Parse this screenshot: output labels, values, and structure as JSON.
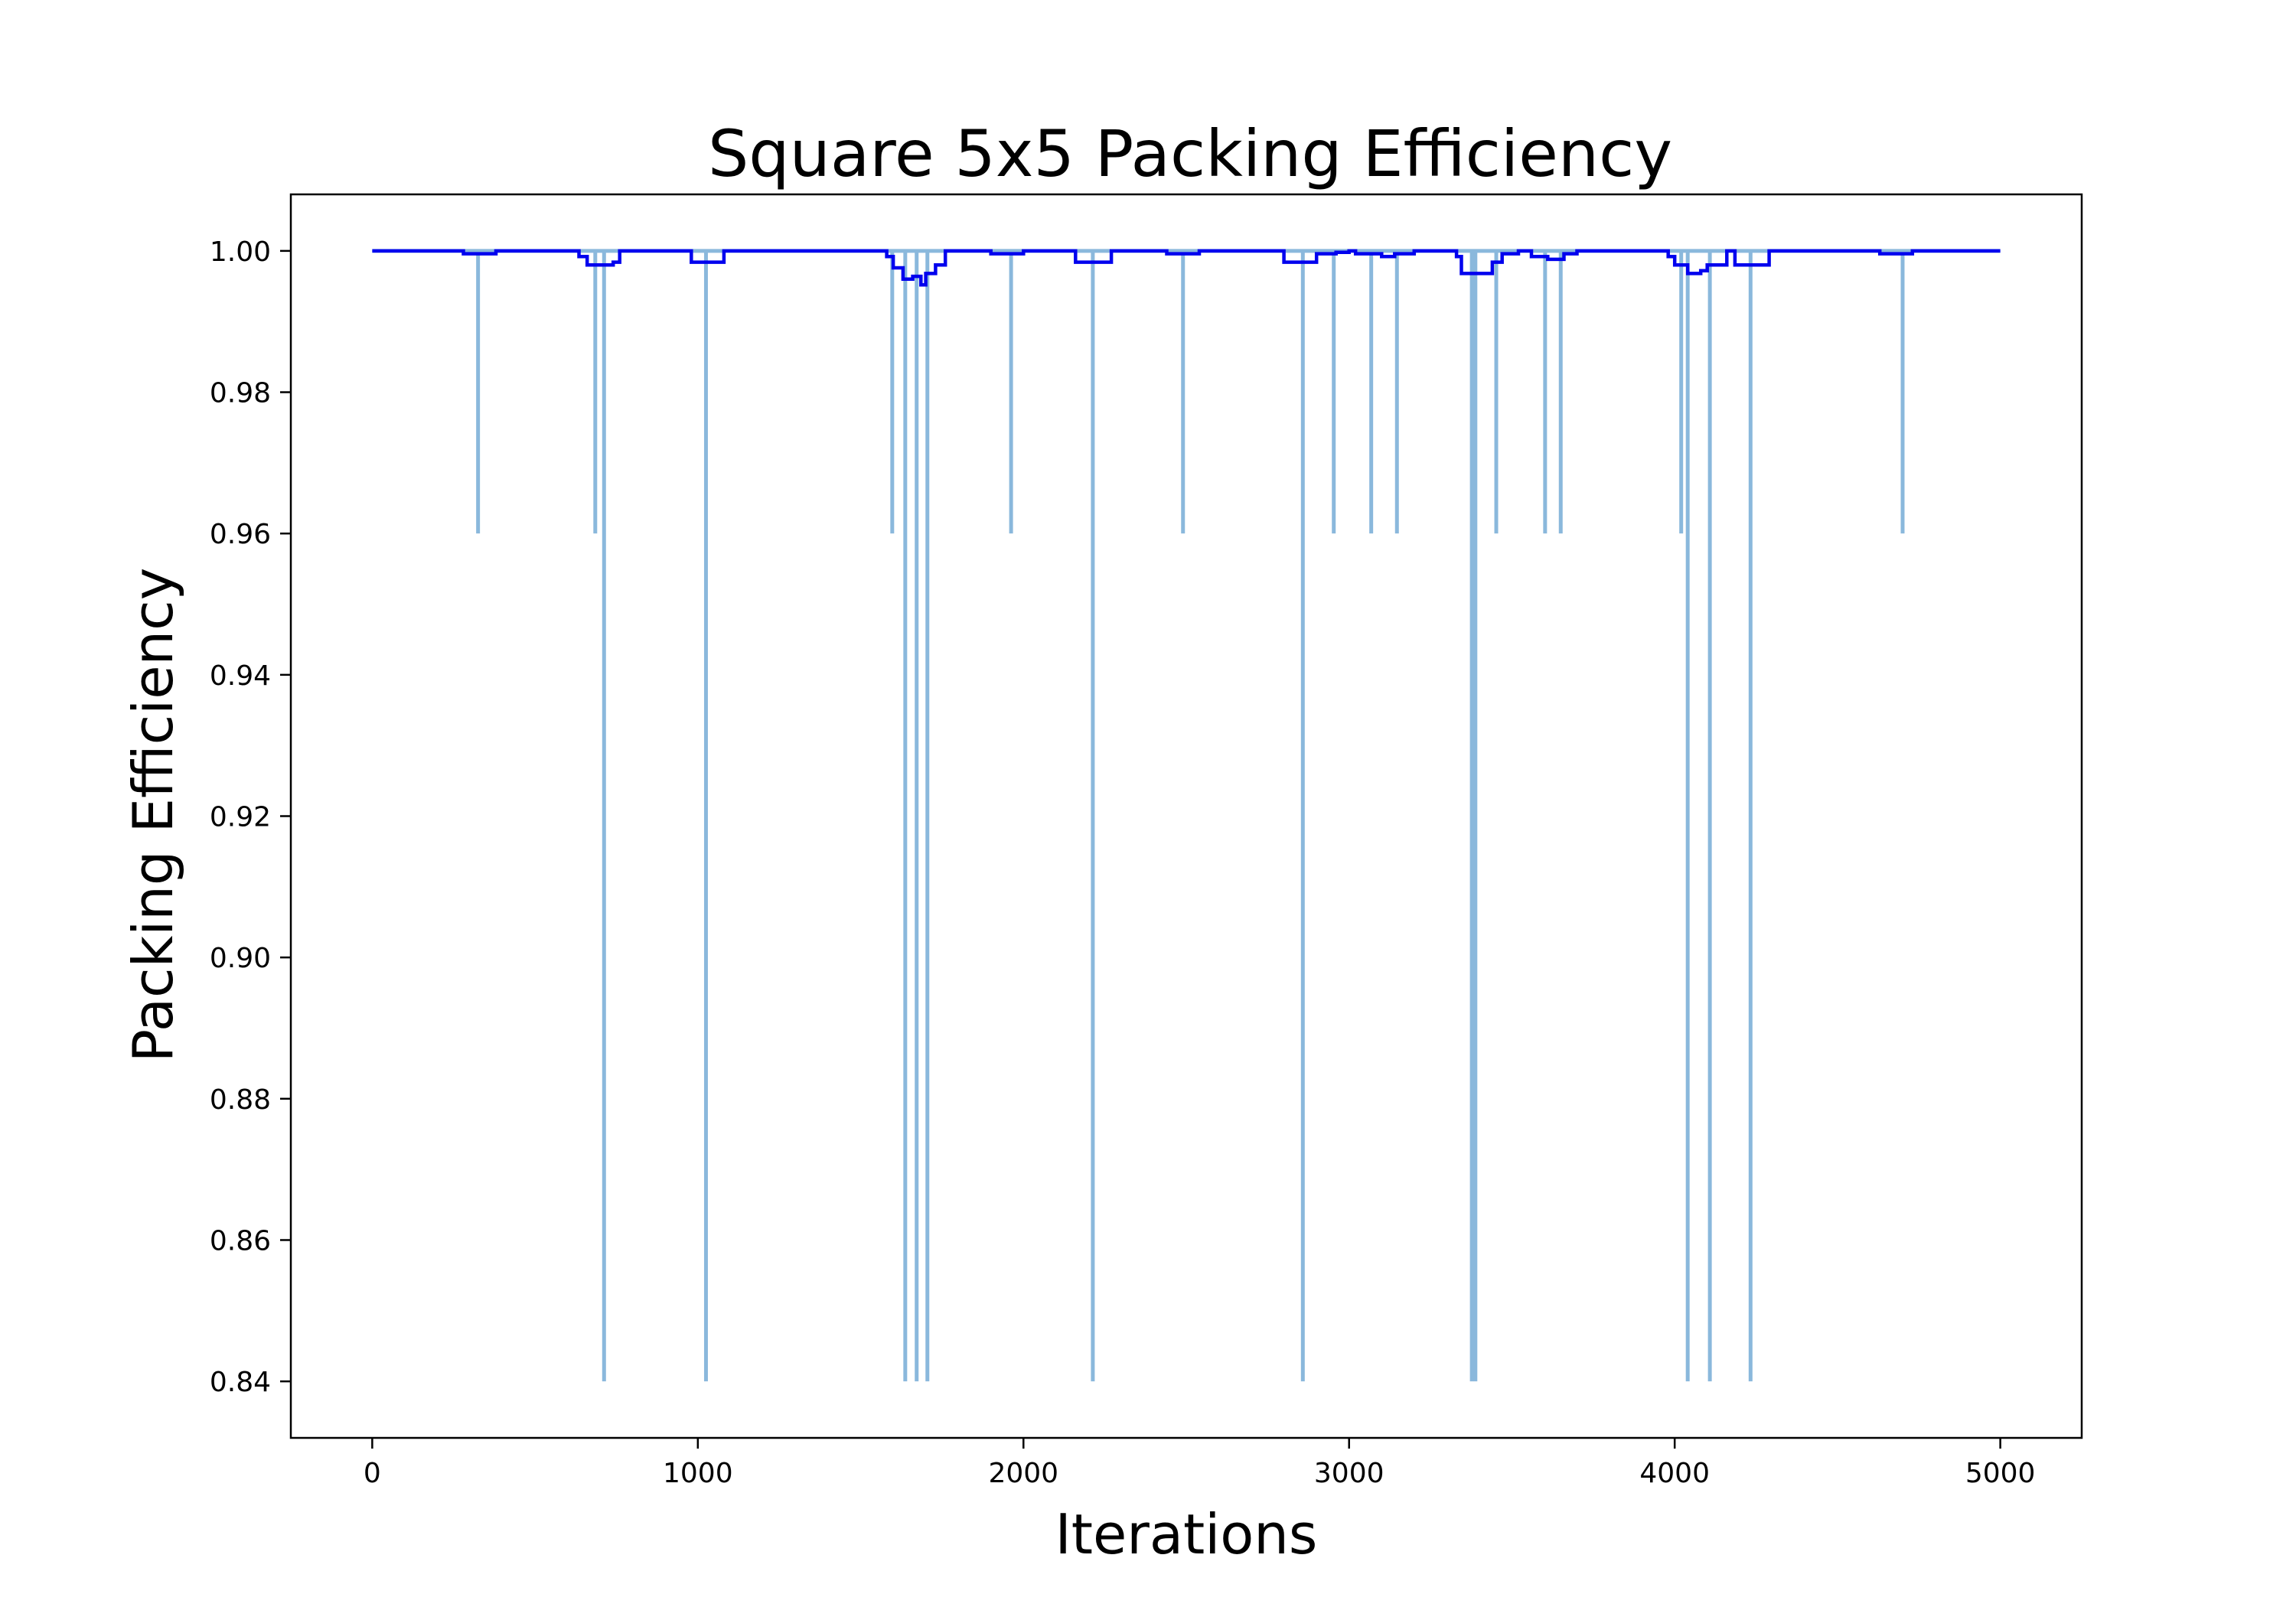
{
  "chart_data": {
    "type": "line",
    "title": "Square 5x5 Packing Efficiency",
    "xlabel": "Iterations",
    "ylabel": "Packing Efficiency",
    "xlim": [
      -250,
      5250
    ],
    "ylim": [
      0.832,
      1.008
    ],
    "xticks": [
      0,
      1000,
      2000,
      3000,
      4000,
      5000
    ],
    "xtick_labels": [
      "0",
      "1000",
      "2000",
      "3000",
      "4000",
      "5000"
    ],
    "yticks": [
      0.84,
      0.86,
      0.88,
      0.9,
      0.92,
      0.94,
      0.96,
      0.98,
      1.0
    ],
    "ytick_labels": [
      "0.84",
      "0.86",
      "0.88",
      "0.90",
      "0.92",
      "0.94",
      "0.96",
      "0.98",
      "1.00"
    ],
    "grid": false,
    "legend": "none",
    "series": [
      {
        "style": "raw",
        "color": "#8ab8dc",
        "baseline": 1.0,
        "drops": [
          {
            "x": 325,
            "y": 0.96
          },
          {
            "x": 685,
            "y": 0.96
          },
          {
            "x": 712,
            "y": 0.84
          },
          {
            "x": 1025,
            "y": 0.84
          },
          {
            "x": 1597,
            "y": 0.96
          },
          {
            "x": 1637,
            "y": 0.84
          },
          {
            "x": 1672,
            "y": 0.84
          },
          {
            "x": 1705,
            "y": 0.84
          },
          {
            "x": 1962,
            "y": 0.96
          },
          {
            "x": 2213,
            "y": 0.84
          },
          {
            "x": 2490,
            "y": 0.96
          },
          {
            "x": 2858,
            "y": 0.84
          },
          {
            "x": 2953,
            "y": 0.96
          },
          {
            "x": 3068,
            "y": 0.96
          },
          {
            "x": 3147,
            "y": 0.96
          },
          {
            "x": 3377,
            "y": 0.84
          },
          {
            "x": 3388,
            "y": 0.84
          },
          {
            "x": 3452,
            "y": 0.96
          },
          {
            "x": 3602,
            "y": 0.96
          },
          {
            "x": 3650,
            "y": 0.96
          },
          {
            "x": 4020,
            "y": 0.96
          },
          {
            "x": 4040,
            "y": 0.84
          },
          {
            "x": 4108,
            "y": 0.84
          },
          {
            "x": 4233,
            "y": 0.84
          },
          {
            "x": 4700,
            "y": 0.96
          }
        ]
      },
      {
        "style": "moving-average",
        "color": "#0000ee",
        "x": [
          0,
          280,
          280,
          380,
          380,
          635,
          635,
          660,
          660,
          740,
          740,
          760,
          760,
          980,
          980,
          1080,
          1080,
          1580,
          1580,
          1600,
          1600,
          1630,
          1630,
          1660,
          1660,
          1685,
          1685,
          1700,
          1700,
          1730,
          1730,
          1760,
          1760,
          1900,
          1900,
          2000,
          2000,
          2160,
          2160,
          2270,
          2270,
          2440,
          2440,
          2540,
          2540,
          2800,
          2800,
          2900,
          2900,
          2960,
          2960,
          3000,
          3000,
          3020,
          3020,
          3100,
          3100,
          3140,
          3140,
          3200,
          3200,
          3330,
          3330,
          3345,
          3345,
          3440,
          3440,
          3470,
          3470,
          3520,
          3520,
          3560,
          3560,
          3610,
          3610,
          3660,
          3660,
          3700,
          3700,
          3980,
          3980,
          4000,
          4000,
          4040,
          4040,
          4080,
          4080,
          4100,
          4100,
          4160,
          4160,
          4185,
          4185,
          4290,
          4290,
          4630,
          4630,
          4730,
          4730,
          5000
        ],
        "y": [
          1.0,
          1.0,
          0.9996,
          0.9996,
          1.0,
          1.0,
          0.9992,
          0.9992,
          0.998,
          0.998,
          0.9984,
          0.9984,
          1.0,
          1.0,
          0.9984,
          0.9984,
          1.0,
          1.0,
          0.9992,
          0.9992,
          0.9976,
          0.9976,
          0.996,
          0.996,
          0.9964,
          0.9964,
          0.9952,
          0.9952,
          0.9968,
          0.9968,
          0.998,
          0.998,
          1.0,
          1.0,
          0.9996,
          0.9996,
          1.0,
          1.0,
          0.9984,
          0.9984,
          1.0,
          1.0,
          0.9996,
          0.9996,
          1.0,
          1.0,
          0.9984,
          0.9984,
          0.9996,
          0.9996,
          0.9998,
          0.9998,
          1.0,
          1.0,
          0.9996,
          0.9996,
          0.9992,
          0.9992,
          0.9996,
          0.9996,
          1.0,
          1.0,
          0.9992,
          0.9992,
          0.9968,
          0.9968,
          0.9984,
          0.9984,
          0.9996,
          0.9996,
          1.0,
          1.0,
          0.9992,
          0.9992,
          0.9988,
          0.9988,
          0.9996,
          0.9996,
          1.0,
          1.0,
          0.9992,
          0.9992,
          0.998,
          0.998,
          0.9968,
          0.9968,
          0.9972,
          0.9972,
          0.998,
          0.998,
          1.0,
          1.0,
          0.998,
          0.998,
          1.0,
          1.0,
          0.9996,
          0.9996,
          1.0,
          1.0
        ]
      }
    ]
  }
}
